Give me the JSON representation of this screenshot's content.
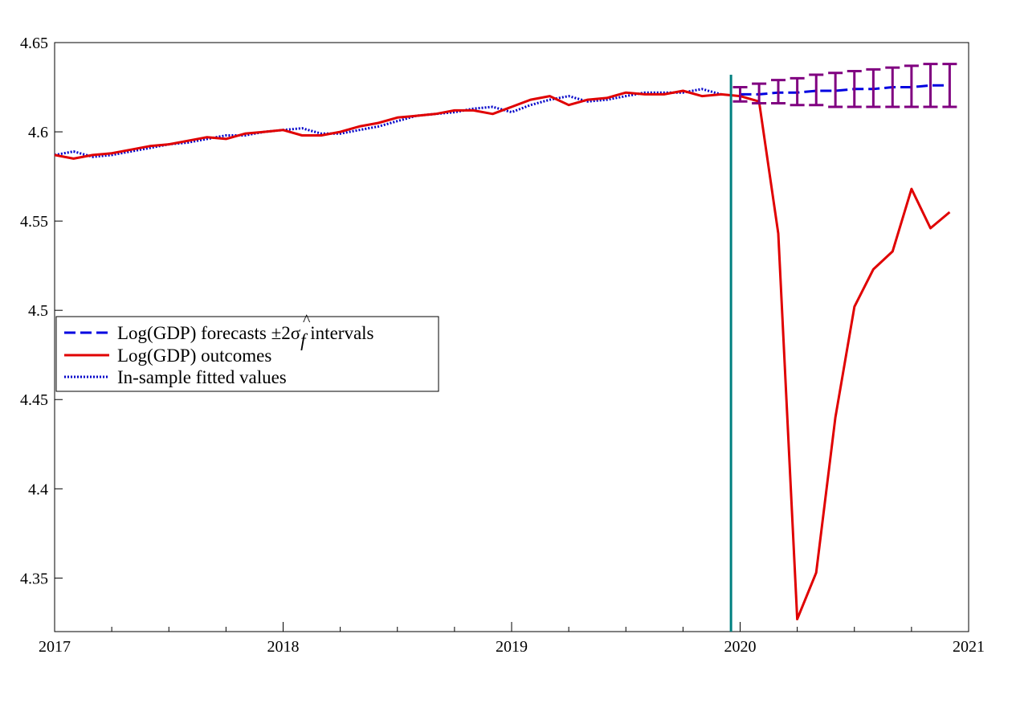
{
  "chart_data": {
    "type": "line",
    "title": "",
    "xlabel": "",
    "ylabel": "",
    "xlim": [
      2017,
      2021
    ],
    "ylim": [
      4.32,
      4.65
    ],
    "x_ticks": [
      2017,
      2018,
      2019,
      2020,
      2021
    ],
    "x_tick_labels": [
      "2017",
      "2018",
      "2019",
      "2020",
      "2021"
    ],
    "y_ticks": [
      4.35,
      4.4,
      4.45,
      4.5,
      4.55,
      4.6,
      4.65
    ],
    "y_tick_labels": [
      "4.35",
      "4.4",
      "4.45",
      "4.5",
      "4.55",
      "4.6",
      "4.65"
    ],
    "grid": false,
    "legend_position": "left-middle",
    "forecast_origin": 2019.96,
    "legend": {
      "forecast_label": "Log(GDP) forecasts ",
      "forecast_label_symbol": "±2",
      "forecast_label_sigma": "σ",
      "forecast_label_hat": "^",
      "forecast_label_sub": "f",
      "forecast_label_tail": " intervals",
      "outcomes_label": "Log(GDP) outcomes",
      "fitted_label": "In-sample fitted values"
    },
    "series": [
      {
        "role": "outcomes",
        "color": "#e00000",
        "style": "solid",
        "x": [
          2017.0,
          2017.083,
          2017.167,
          2017.25,
          2017.333,
          2017.417,
          2017.5,
          2017.583,
          2017.667,
          2017.75,
          2017.833,
          2017.917,
          2018.0,
          2018.083,
          2018.167,
          2018.25,
          2018.333,
          2018.417,
          2018.5,
          2018.583,
          2018.667,
          2018.75,
          2018.833,
          2018.917,
          2019.0,
          2019.083,
          2019.167,
          2019.25,
          2019.333,
          2019.417,
          2019.5,
          2019.583,
          2019.667,
          2019.75,
          2019.833,
          2019.917,
          2020.0,
          2020.083,
          2020.167,
          2020.25,
          2020.333,
          2020.417,
          2020.5,
          2020.583,
          2020.667,
          2020.75,
          2020.833,
          2020.917
        ],
        "y": [
          4.587,
          4.585,
          4.587,
          4.588,
          4.59,
          4.592,
          4.593,
          4.595,
          4.597,
          4.596,
          4.599,
          4.6,
          4.601,
          4.598,
          4.598,
          4.6,
          4.603,
          4.605,
          4.608,
          4.609,
          4.61,
          4.612,
          4.612,
          4.61,
          4.614,
          4.618,
          4.62,
          4.615,
          4.618,
          4.619,
          4.622,
          4.621,
          4.621,
          4.623,
          4.62,
          4.621,
          4.62,
          4.617,
          4.543,
          4.327,
          4.353,
          4.44,
          4.502,
          4.523,
          4.533,
          4.568,
          4.546,
          4.555
        ]
      },
      {
        "role": "fitted",
        "color": "#0000c8",
        "style": "dotted",
        "x": [
          2017.0,
          2017.083,
          2017.167,
          2017.25,
          2017.333,
          2017.417,
          2017.5,
          2017.583,
          2017.667,
          2017.75,
          2017.833,
          2017.917,
          2018.0,
          2018.083,
          2018.167,
          2018.25,
          2018.333,
          2018.417,
          2018.5,
          2018.583,
          2018.667,
          2018.75,
          2018.833,
          2018.917,
          2019.0,
          2019.083,
          2019.167,
          2019.25,
          2019.333,
          2019.417,
          2019.5,
          2019.583,
          2019.667,
          2019.75,
          2019.833,
          2019.917
        ],
        "y": [
          4.587,
          4.589,
          4.586,
          4.587,
          4.589,
          4.591,
          4.593,
          4.594,
          4.596,
          4.598,
          4.598,
          4.6,
          4.601,
          4.602,
          4.599,
          4.599,
          4.601,
          4.603,
          4.606,
          4.609,
          4.61,
          4.611,
          4.613,
          4.614,
          4.611,
          4.615,
          4.618,
          4.62,
          4.617,
          4.618,
          4.62,
          4.622,
          4.622,
          4.622,
          4.624,
          4.621
        ]
      },
      {
        "role": "forecast",
        "color": "#0000e0",
        "style": "dashed",
        "x": [
          2020.0,
          2020.083,
          2020.167,
          2020.25,
          2020.333,
          2020.417,
          2020.5,
          2020.583,
          2020.667,
          2020.75,
          2020.833,
          2020.917
        ],
        "y": [
          4.621,
          4.621,
          4.622,
          4.622,
          4.623,
          4.623,
          4.624,
          4.624,
          4.625,
          4.625,
          4.626,
          4.626
        ],
        "interval_color": "#800080",
        "lower": [
          4.617,
          4.616,
          4.616,
          4.615,
          4.615,
          4.614,
          4.614,
          4.614,
          4.614,
          4.614,
          4.614,
          4.614
        ],
        "upper": [
          4.625,
          4.627,
          4.629,
          4.63,
          4.632,
          4.633,
          4.634,
          4.635,
          4.636,
          4.637,
          4.638,
          4.638
        ]
      }
    ],
    "colors": {
      "axis": "#000000",
      "forecast_line": "#008080",
      "background": "#ffffff"
    }
  }
}
